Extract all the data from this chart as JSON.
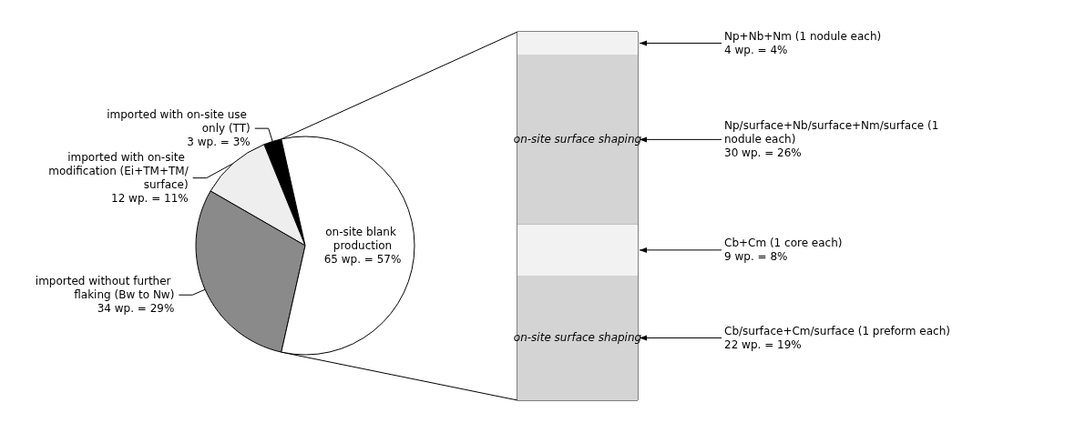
{
  "chart_data": [
    {
      "type": "pie",
      "categories": [
        "imported with on-site use only (TT)",
        "imported with on-site modification (Ei+TM+TM/surface)",
        "imported without further flaking (Bw to Nw)",
        "on-site blank production"
      ],
      "values": [
        3,
        12,
        34,
        65
      ],
      "value_labels": [
        "3 wp. = 3%",
        "12 wp. = 11%",
        "34 wp. = 29%",
        "65 wp. = 57%"
      ],
      "colors": [
        "#000000",
        "#eeeeee",
        "#8a8a8a",
        "#ffffff"
      ]
    },
    {
      "type": "bar",
      "stacked": true,
      "categories": [
        null
      ],
      "series": [
        {
          "name": "Cb/surface+Cm/surface (1 preform each)",
          "color": "#d4d4d4",
          "values": [
            22
          ],
          "value_labels": [
            "22 wp. = 19%"
          ]
        },
        {
          "name": "Cb+Cm (1 core each)",
          "color": "#f2f2f2",
          "values": [
            9
          ],
          "value_labels": [
            "9 wp. = 8%"
          ]
        },
        {
          "name": "Np/surface+Nb/surface+Nm/surface (1 nodule each)",
          "color": "#d4d4d4",
          "values": [
            30
          ],
          "value_labels": [
            "30 wp. = 26%"
          ]
        },
        {
          "name": "Np+Nb+Nm (1 nodule each)",
          "color": "#f2f2f2",
          "values": [
            4
          ],
          "value_labels": [
            "4 wp. = 4%"
          ]
        }
      ],
      "annotations": [
        "on-site surface shaping",
        "on-site surface shaping"
      ]
    }
  ]
}
